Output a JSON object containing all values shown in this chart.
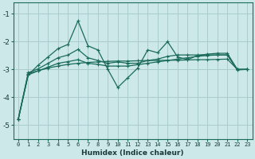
{
  "xlabel": "Humidex (Indice chaleur)",
  "ylabel": "",
  "bg_color": "#cce8e8",
  "grid_color": "#aacccc",
  "line_color": "#1a6b5a",
  "xlim": [
    -0.5,
    23.5
  ],
  "ylim": [
    -5.5,
    -0.6
  ],
  "xticks": [
    0,
    1,
    2,
    3,
    4,
    5,
    6,
    7,
    8,
    9,
    10,
    11,
    12,
    13,
    14,
    15,
    16,
    17,
    18,
    19,
    20,
    21,
    22,
    23
  ],
  "yticks": [
    -5,
    -4,
    -3,
    -2,
    -1
  ],
  "x": [
    0,
    1,
    2,
    3,
    4,
    5,
    6,
    7,
    8,
    9,
    10,
    11,
    12,
    13,
    14,
    15,
    16,
    17,
    18,
    19,
    20,
    21,
    22,
    23
  ],
  "line1": [
    -4.8,
    -3.2,
    -3.05,
    -2.95,
    -2.88,
    -2.82,
    -2.78,
    -2.75,
    -2.73,
    -2.71,
    -2.7,
    -2.7,
    -2.69,
    -2.68,
    -2.68,
    -2.67,
    -2.67,
    -2.66,
    -2.65,
    -2.65,
    -2.64,
    -2.63,
    -3.0,
    -3.0
  ],
  "line2": [
    -4.8,
    -3.2,
    -2.85,
    -2.55,
    -2.25,
    -2.1,
    -1.25,
    -2.15,
    -2.3,
    -3.0,
    -3.65,
    -3.3,
    -2.95,
    -2.3,
    -2.4,
    -2.0,
    -2.55,
    -2.65,
    -2.5,
    -2.45,
    -2.42,
    -2.42,
    -3.0,
    -3.0
  ],
  "line3": [
    -4.8,
    -3.15,
    -3.05,
    -2.92,
    -2.78,
    -2.72,
    -2.65,
    -2.78,
    -2.82,
    -2.88,
    -2.88,
    -2.88,
    -2.83,
    -2.78,
    -2.73,
    -2.68,
    -2.63,
    -2.58,
    -2.53,
    -2.5,
    -2.48,
    -2.48,
    -3.02,
    -3.0
  ],
  "line4": [
    -4.8,
    -3.12,
    -2.98,
    -2.78,
    -2.58,
    -2.48,
    -2.28,
    -2.58,
    -2.68,
    -2.78,
    -2.73,
    -2.78,
    -2.78,
    -2.68,
    -2.63,
    -2.53,
    -2.48,
    -2.48,
    -2.48,
    -2.48,
    -2.48,
    -2.48,
    -3.0,
    -3.0
  ]
}
